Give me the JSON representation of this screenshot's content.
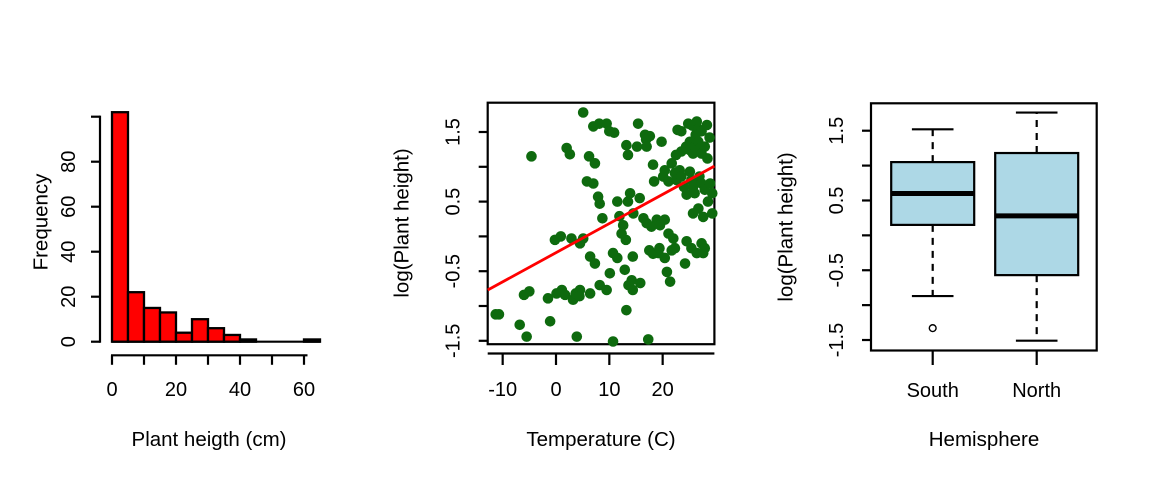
{
  "figure": {
    "background": "#ffffff"
  },
  "chart_data": [
    {
      "type": "bar",
      "subtype": "histogram",
      "xlabel": "Plant heigth (cm)",
      "ylabel": "Frequency",
      "bar_color": "#ff0000",
      "bar_border_color": "#000000",
      "bin_start": 0,
      "bin_width": 5,
      "counts": [
        102,
        22,
        15,
        13,
        4,
        10,
        6,
        3,
        1,
        0,
        0,
        0,
        1
      ],
      "x_ticks": {
        "values": [
          0,
          10,
          20,
          30,
          40,
          50,
          60
        ],
        "labels": [
          "0",
          "",
          "20",
          "",
          "40",
          "",
          "60"
        ]
      },
      "y_ticks": {
        "values": [
          0,
          20,
          40,
          60,
          80,
          100
        ],
        "labels": [
          "0",
          "20",
          "40",
          "60",
          "80",
          ""
        ]
      },
      "xlim": [
        0,
        65
      ],
      "ylim": [
        0,
        100
      ],
      "grid": false
    },
    {
      "type": "scatter",
      "xlabel": "Temperature (C)",
      "ylabel": "log(Plant height)",
      "point_color": "#0e6a0e",
      "regression_line": {
        "color": "#ff0000",
        "x1": -12.8,
        "y1": -0.77,
        "x2": 29.7,
        "y2": 1.01
      },
      "x_ticks": {
        "values": [
          -10,
          0,
          10,
          20
        ],
        "labels": [
          "-10",
          "0",
          "10",
          "20"
        ]
      },
      "y_ticks": {
        "values": [
          -1.5,
          -1,
          -0.5,
          0,
          0.5,
          1,
          1.5
        ],
        "labels": [
          "-1.5",
          "",
          "-0.5",
          "",
          "0.5",
          "",
          "1.5"
        ]
      },
      "xlim": [
        -12.8,
        29.7
      ],
      "ylim": [
        -1.55,
        1.92
      ],
      "grid": false,
      "points": [
        [
          5.1,
          1.78
        ],
        [
          7.0,
          1.58
        ],
        [
          8.1,
          1.62
        ],
        [
          9.5,
          1.62
        ],
        [
          10.0,
          1.51
        ],
        [
          10.9,
          1.49
        ],
        [
          15.4,
          1.62
        ],
        [
          16.7,
          1.46
        ],
        [
          17.6,
          1.44
        ],
        [
          22.8,
          1.53
        ],
        [
          23.5,
          1.51
        ],
        [
          24.8,
          1.62
        ],
        [
          25.6,
          1.59
        ],
        [
          26.4,
          1.65
        ],
        [
          26.7,
          1.54
        ],
        [
          27.3,
          1.51
        ],
        [
          28.3,
          1.6
        ],
        [
          28.8,
          1.42
        ],
        [
          -4.6,
          1.15
        ],
        [
          2.0,
          1.27
        ],
        [
          2.6,
          1.18
        ],
        [
          6.2,
          1.15
        ],
        [
          7.3,
          1.05
        ],
        [
          13.2,
          1.31
        ],
        [
          13.5,
          1.17
        ],
        [
          15.2,
          1.29
        ],
        [
          16.9,
          1.39
        ],
        [
          17.0,
          1.29
        ],
        [
          19.8,
          1.36
        ],
        [
          22.5,
          1.17
        ],
        [
          23.5,
          1.22
        ],
        [
          24.4,
          1.29
        ],
        [
          25.1,
          1.36
        ],
        [
          25.1,
          1.24
        ],
        [
          25.7,
          1.19
        ],
        [
          26.0,
          1.29
        ],
        [
          26.2,
          1.46
        ],
        [
          26.7,
          1.36
        ],
        [
          27.0,
          1.27
        ],
        [
          27.3,
          1.19
        ],
        [
          27.9,
          1.29
        ],
        [
          28.4,
          1.12
        ],
        [
          5.8,
          0.79
        ],
        [
          7.0,
          0.76
        ],
        [
          7.9,
          0.57
        ],
        [
          8.2,
          0.47
        ],
        [
          11.5,
          0.5
        ],
        [
          13.5,
          0.5
        ],
        [
          13.9,
          0.62
        ],
        [
          15.7,
          0.55
        ],
        [
          18.2,
          1.03
        ],
        [
          18.4,
          0.79
        ],
        [
          20.1,
          0.86
        ],
        [
          20.4,
          0.95
        ],
        [
          21.1,
          0.79
        ],
        [
          21.7,
          1.05
        ],
        [
          22.3,
          0.91
        ],
        [
          22.6,
          0.81
        ],
        [
          23.2,
          0.95
        ],
        [
          23.5,
          0.86
        ],
        [
          24.0,
          0.71
        ],
        [
          24.5,
          0.6
        ],
        [
          25.1,
          0.93
        ],
        [
          25.4,
          0.81
        ],
        [
          25.7,
          0.71
        ],
        [
          26.0,
          0.62
        ],
        [
          26.4,
          0.79
        ],
        [
          26.9,
          0.86
        ],
        [
          27.3,
          0.76
        ],
        [
          27.9,
          0.67
        ],
        [
          28.5,
          0.5
        ],
        [
          28.9,
          0.76
        ],
        [
          29.3,
          0.62
        ],
        [
          8.7,
          0.26
        ],
        [
          11.9,
          0.29
        ],
        [
          12.6,
          0.16
        ],
        [
          14.5,
          0.33
        ],
        [
          16.4,
          0.26
        ],
        [
          17.0,
          0.19
        ],
        [
          17.9,
          0.14
        ],
        [
          18.9,
          0.24
        ],
        [
          19.5,
          0.16
        ],
        [
          20.4,
          0.24
        ],
        [
          25.7,
          0.33
        ],
        [
          26.7,
          0.4
        ],
        [
          27.6,
          0.28
        ],
        [
          29.3,
          0.33
        ],
        [
          -0.2,
          -0.05
        ],
        [
          0.9,
          0.0
        ],
        [
          2.9,
          -0.03
        ],
        [
          4.5,
          -0.1
        ],
        [
          5.1,
          -0.03
        ],
        [
          12.3,
          0.04
        ],
        [
          13.1,
          -0.05
        ],
        [
          21.1,
          0.04
        ],
        [
          22.0,
          -0.03
        ],
        [
          6.4,
          -0.29
        ],
        [
          7.3,
          -0.39
        ],
        [
          10.7,
          -0.24
        ],
        [
          11.5,
          -0.31
        ],
        [
          14.4,
          -0.29
        ],
        [
          17.5,
          -0.2
        ],
        [
          18.2,
          -0.25
        ],
        [
          19.2,
          -0.24
        ],
        [
          19.4,
          -0.17
        ],
        [
          20.4,
          -0.31
        ],
        [
          21.7,
          -0.2
        ],
        [
          22.3,
          -0.17
        ],
        [
          24.2,
          -0.39
        ],
        [
          24.5,
          -0.07
        ],
        [
          25.4,
          -0.17
        ],
        [
          26.4,
          -0.24
        ],
        [
          27.3,
          -0.1
        ],
        [
          27.6,
          -0.24
        ],
        [
          27.9,
          -0.17
        ],
        [
          10.1,
          -0.53
        ],
        [
          12.9,
          -0.48
        ],
        [
          14.2,
          -0.63
        ],
        [
          13.6,
          -0.7
        ],
        [
          14.4,
          -0.77
        ],
        [
          8.2,
          -0.7
        ],
        [
          20.8,
          -0.51
        ],
        [
          21.4,
          -0.65
        ],
        [
          15.8,
          -0.67
        ],
        [
          -6.0,
          -0.84
        ],
        [
          -5.0,
          -0.79
        ],
        [
          0.1,
          -0.82
        ],
        [
          1.1,
          -0.77
        ],
        [
          1.7,
          -0.84
        ],
        [
          3.2,
          -0.91
        ],
        [
          3.7,
          -0.82
        ],
        [
          4.5,
          -0.77
        ],
        [
          4.4,
          -0.86
        ],
        [
          6.4,
          -0.82
        ],
        [
          9.5,
          -0.77
        ],
        [
          -1.5,
          -0.89
        ],
        [
          13.2,
          -1.06
        ],
        [
          -11.3,
          -1.12
        ],
        [
          -10.7,
          -1.12
        ],
        [
          -6.8,
          -1.27
        ],
        [
          -5.5,
          -1.44
        ],
        [
          -1.1,
          -1.22
        ],
        [
          3.9,
          -1.44
        ],
        [
          10.7,
          -1.51
        ],
        [
          17.3,
          -1.48
        ]
      ]
    },
    {
      "type": "boxplot",
      "xlabel": "Hemisphere",
      "ylabel": "log(Plant height)",
      "box_fill": "#add8e6",
      "box_border": "#000000",
      "y_ticks": {
        "values": [
          -1.5,
          -1,
          -0.5,
          0,
          0.5,
          1,
          1.5
        ],
        "labels": [
          "-1.5",
          "",
          "-0.5",
          "",
          "0.5",
          "",
          "1.5"
        ]
      },
      "ylim": [
        -1.65,
        1.89
      ],
      "grid": false,
      "groups": [
        {
          "label": "South",
          "q1": 0.15,
          "median": 0.6,
          "q3": 1.05,
          "whisker_low": -0.87,
          "whisker_high": 1.52,
          "outliers": [
            -1.33
          ]
        },
        {
          "label": "North",
          "q1": -0.57,
          "median": 0.28,
          "q3": 1.18,
          "whisker_low": -1.51,
          "whisker_high": 1.76,
          "outliers": []
        }
      ]
    }
  ]
}
